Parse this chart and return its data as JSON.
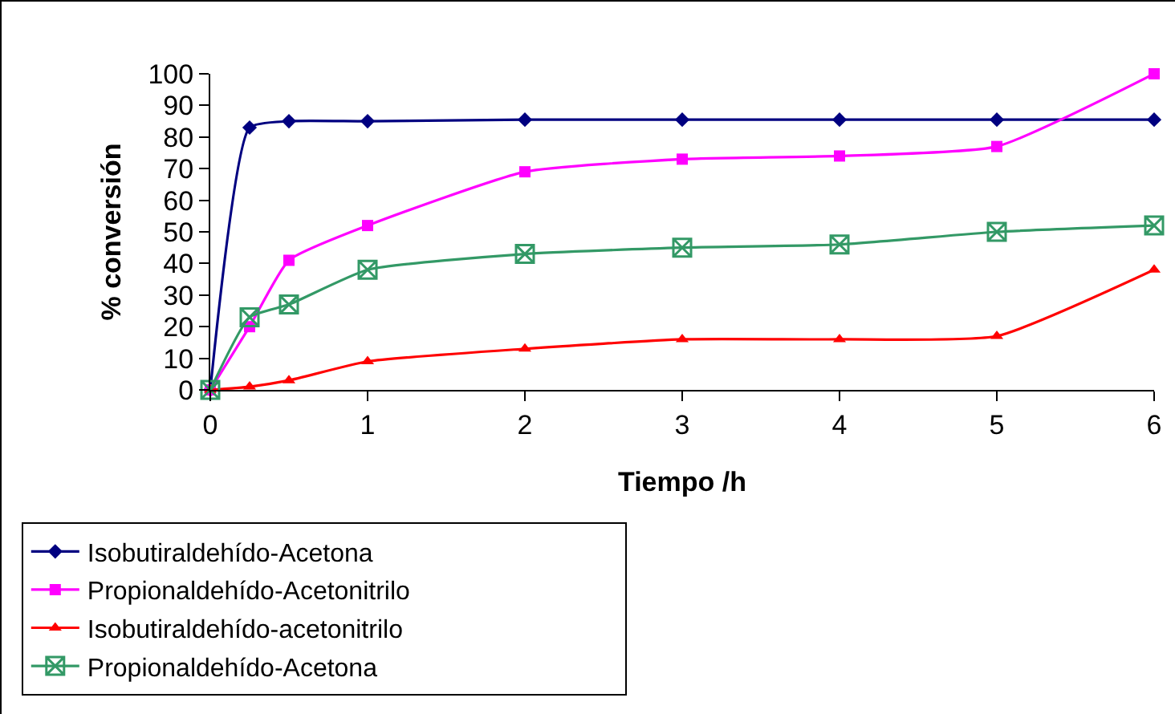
{
  "chart_data": {
    "type": "line",
    "xlabel": "Tiempo /h",
    "ylabel": "% conversión",
    "x": [
      0,
      0.25,
      0.5,
      1,
      2,
      3,
      4,
      5,
      6
    ],
    "xlim": [
      0,
      6
    ],
    "xticks": [
      0,
      1,
      2,
      3,
      4,
      5,
      6
    ],
    "ylim": [
      0,
      100
    ],
    "yticks": [
      0,
      10,
      20,
      30,
      40,
      50,
      60,
      70,
      80,
      90,
      100
    ],
    "grid": false,
    "legend": "bottom",
    "line_style": "solid",
    "series": [
      {
        "name": "Isobutiraldehído-Acetona",
        "color": "#000080",
        "marker": "diamond",
        "values": [
          0,
          83,
          85,
          85,
          85.5,
          85.5,
          85.5,
          85.5,
          85.5
        ]
      },
      {
        "name": "Propionaldehído-Acetonitrilo",
        "color": "#ff00ff",
        "marker": "square",
        "values": [
          0,
          20,
          41,
          52,
          69,
          73,
          74,
          77,
          100
        ]
      },
      {
        "name": "Isobutiraldehído-acetonitrilo",
        "color": "#ff0000",
        "marker": "triangle",
        "values": [
          0,
          1,
          3,
          9,
          13,
          16,
          16,
          17,
          38
        ]
      },
      {
        "name": "Propionaldehído-Acetona",
        "color": "#339966",
        "marker": "cross",
        "values": [
          0,
          23,
          27,
          38,
          43,
          45,
          46,
          50,
          52
        ]
      }
    ]
  }
}
